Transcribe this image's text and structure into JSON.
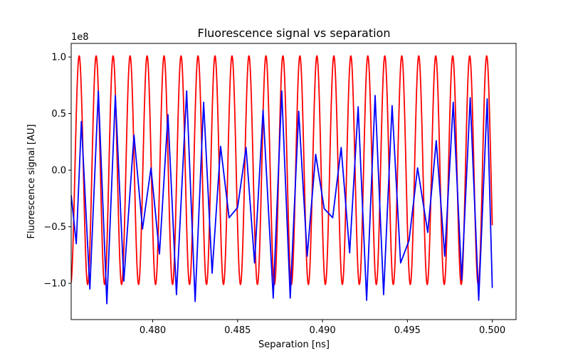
{
  "chart_data": {
    "type": "line",
    "title": "Fluorescence signal vs separation",
    "xlabel": "Separation [ns]",
    "ylabel": "Fluorescence signal [AU]",
    "y_offset_text": "1e8",
    "xlim": [
      0.4752,
      0.5014
    ],
    "ylim": [
      -1.32,
      1.12
    ],
    "x_scale_note": "",
    "x_ticks": [
      {
        "value": 0.48,
        "label": "0.480"
      },
      {
        "value": 0.485,
        "label": "0.485"
      },
      {
        "value": 0.49,
        "label": "0.490"
      },
      {
        "value": 0.495,
        "label": "0.495"
      },
      {
        "value": 0.5,
        "label": "0.500"
      }
    ],
    "y_ticks": [
      {
        "value": 1.0,
        "label": "1.0"
      },
      {
        "value": 0.5,
        "label": "0.5"
      },
      {
        "value": 0.0,
        "label": "0.0"
      },
      {
        "value": -0.5,
        "label": "−0.5"
      },
      {
        "value": -1.0,
        "label": "−1.0"
      }
    ],
    "grid": false,
    "legend": "none",
    "series": [
      {
        "color": "#ff0000",
        "kind": "sinusoid",
        "x_range": [
          0.4752,
          0.5
        ],
        "period": 0.001,
        "amplitude": 1.01,
        "phase_x": 0.47517
      },
      {
        "color": "#0000ff",
        "kind": "polyline",
        "x": [
          0.4752,
          0.4755,
          0.4758,
          0.4763,
          0.4768,
          0.4773,
          0.4778,
          0.4783,
          0.4789,
          0.4794,
          0.4799,
          0.4804,
          0.4809,
          0.4814,
          0.482,
          0.4825,
          0.483,
          0.4835,
          0.484,
          0.4845,
          0.485,
          0.4855,
          0.486,
          0.4865,
          0.4871,
          0.4876,
          0.4881,
          0.4886,
          0.4891,
          0.4896,
          0.4901,
          0.4906,
          0.4911,
          0.4916,
          0.4921,
          0.4926,
          0.4931,
          0.4936,
          0.4941,
          0.4946,
          0.4951,
          0.4956,
          0.4962,
          0.4967,
          0.4972,
          0.4977,
          0.4982,
          0.4987,
          0.4992,
          0.4997,
          0.5
        ],
        "y": [
          -0.22,
          -0.65,
          0.43,
          -1.05,
          0.7,
          -1.18,
          0.66,
          -0.98,
          0.31,
          -0.52,
          0.02,
          -0.74,
          0.49,
          -1.1,
          0.7,
          -1.16,
          0.6,
          -0.91,
          0.21,
          -0.42,
          -0.33,
          0.2,
          -0.82,
          0.53,
          -1.13,
          0.7,
          -1.13,
          0.52,
          -0.76,
          0.14,
          -0.34,
          -0.42,
          0.2,
          -0.73,
          0.56,
          -1.15,
          0.66,
          -1.1,
          0.57,
          -0.82,
          -0.62,
          0.02,
          -0.55,
          0.26,
          -0.76,
          0.6,
          -0.97,
          0.64,
          -1.15,
          0.63,
          -1.04
        ]
      }
    ]
  }
}
